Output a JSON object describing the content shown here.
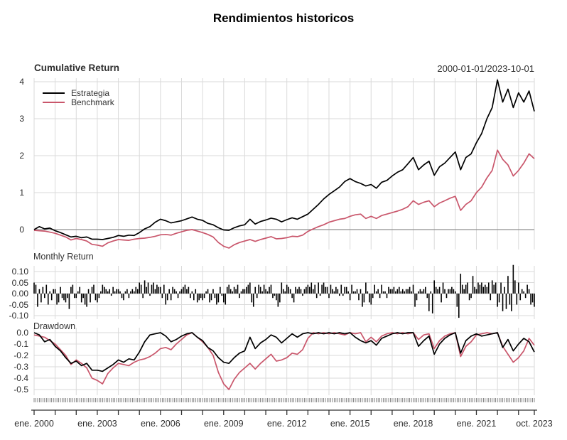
{
  "title": "Rendimientos historicos",
  "header": {
    "panel_title": "Cumulative Return",
    "date_range": "2000-01-01/2023-10-01"
  },
  "legend": [
    {
      "label": "Estrategia",
      "color": "#000000"
    },
    {
      "label": "Benchmark",
      "color": "#c9566b"
    }
  ],
  "panels": {
    "monthly": {
      "title": "Monthly Return"
    },
    "drawdown": {
      "title": "Drawdown"
    }
  },
  "colors": {
    "estrategia": "#000000",
    "benchmark": "#c9566b",
    "grid": "#dadada",
    "zero_line": "#8f8f8f",
    "axis": "#333333",
    "bar": "#000000"
  },
  "xaxis": {
    "start": 2000,
    "end": 2023.75,
    "minor_ticks_months": 286,
    "labels": [
      {
        "text": "ene. 2000",
        "pos": 2000
      },
      {
        "text": "ene. 2003",
        "pos": 2003
      },
      {
        "text": "ene. 2006",
        "pos": 2006
      },
      {
        "text": "ene. 2009",
        "pos": 2009
      },
      {
        "text": "ene. 2012",
        "pos": 2012
      },
      {
        "text": "ene. 2015",
        "pos": 2015
      },
      {
        "text": "ene. 2018",
        "pos": 2018
      },
      {
        "text": "ene. 2021",
        "pos": 2021
      },
      {
        "text": "oct. 2023",
        "pos": 2023.75
      }
    ]
  },
  "chart_data": [
    {
      "type": "line",
      "title": "Cumulative Return",
      "date_range": "2000-01-01/2023-10-01",
      "ylim": [
        -0.6,
        4.15
      ],
      "yticks": [
        {
          "v": 4,
          "label": "4"
        },
        {
          "v": 3,
          "label": "3"
        },
        {
          "v": 2,
          "label": "2"
        },
        {
          "v": 1,
          "label": "1"
        },
        {
          "v": 0,
          "label": "0"
        }
      ],
      "grid": "both",
      "legend_position": "top-left",
      "x_start": 2000,
      "x_step": 0.25,
      "series": [
        {
          "name": "Estrategia",
          "color": "#000000",
          "values": [
            0.0,
            0.08,
            0.02,
            0.04,
            -0.03,
            -0.08,
            -0.14,
            -0.2,
            -0.18,
            -0.22,
            -0.2,
            -0.26,
            -0.26,
            -0.27,
            -0.24,
            -0.21,
            -0.16,
            -0.18,
            -0.15,
            -0.16,
            -0.08,
            0.02,
            0.08,
            0.2,
            0.28,
            0.24,
            0.18,
            0.21,
            0.24,
            0.29,
            0.34,
            0.28,
            0.25,
            0.17,
            0.13,
            0.05,
            -0.01,
            -0.02,
            0.05,
            0.1,
            0.13,
            0.28,
            0.15,
            0.22,
            0.26,
            0.31,
            0.28,
            0.21,
            0.27,
            0.32,
            0.28,
            0.35,
            0.42,
            0.55,
            0.68,
            0.83,
            0.95,
            1.05,
            1.15,
            1.3,
            1.38,
            1.3,
            1.25,
            1.18,
            1.22,
            1.12,
            1.28,
            1.33,
            1.45,
            1.55,
            1.62,
            1.78,
            1.95,
            1.62,
            1.75,
            1.85,
            1.47,
            1.7,
            1.8,
            1.95,
            2.1,
            1.62,
            1.95,
            2.05,
            2.35,
            2.6,
            3.0,
            3.3,
            4.05,
            3.45,
            3.8,
            3.3,
            3.7,
            3.45,
            3.75,
            3.2
          ]
        },
        {
          "name": "Benchmark",
          "color": "#c9566b",
          "values": [
            -0.02,
            -0.03,
            -0.04,
            -0.07,
            -0.1,
            -0.15,
            -0.2,
            -0.28,
            -0.24,
            -0.27,
            -0.31,
            -0.4,
            -0.42,
            -0.45,
            -0.36,
            -0.31,
            -0.27,
            -0.28,
            -0.29,
            -0.26,
            -0.24,
            -0.23,
            -0.21,
            -0.18,
            -0.14,
            -0.13,
            -0.15,
            -0.1,
            -0.06,
            -0.02,
            0.0,
            -0.04,
            -0.08,
            -0.13,
            -0.2,
            -0.35,
            -0.45,
            -0.5,
            -0.41,
            -0.35,
            -0.31,
            -0.27,
            -0.32,
            -0.27,
            -0.23,
            -0.19,
            -0.25,
            -0.24,
            -0.22,
            -0.18,
            -0.19,
            -0.15,
            -0.05,
            0.02,
            0.08,
            0.13,
            0.2,
            0.24,
            0.28,
            0.3,
            0.36,
            0.4,
            0.42,
            0.3,
            0.36,
            0.3,
            0.38,
            0.42,
            0.46,
            0.5,
            0.55,
            0.62,
            0.78,
            0.68,
            0.74,
            0.78,
            0.62,
            0.72,
            0.78,
            0.85,
            0.9,
            0.52,
            0.68,
            0.78,
            1.0,
            1.15,
            1.4,
            1.6,
            2.15,
            1.9,
            1.75,
            1.45,
            1.6,
            1.8,
            2.05,
            1.92
          ]
        }
      ]
    },
    {
      "type": "bar",
      "title": "Monthly Return",
      "series_name": "Estrategia",
      "ylim": [
        -0.125,
        0.14
      ],
      "yticks": [
        {
          "v": 0.1,
          "label": "0.10"
        },
        {
          "v": 0.05,
          "label": "0.05"
        },
        {
          "v": 0.0,
          "label": "0.00"
        },
        {
          "v": -0.05,
          "label": "-0.05"
        },
        {
          "v": -0.1,
          "label": "-0.10"
        }
      ],
      "x_start": 2000,
      "x_step": 0.0833333,
      "values": [
        0.05,
        0.04,
        -0.06,
        0.02,
        -0.04,
        0.03,
        -0.02,
        0.04,
        -0.05,
        0.01,
        -0.03,
        0.02,
        0.02,
        -0.05,
        -0.04,
        0.03,
        -0.02,
        -0.03,
        -0.04,
        -0.02,
        -0.07,
        0.03,
        0.04,
        -0.02,
        -0.02,
        0.01,
        0.03,
        -0.04,
        -0.02,
        -0.05,
        -0.06,
        0.02,
        -0.04,
        0.03,
        0.04,
        -0.03,
        -0.04,
        -0.02,
        0.01,
        0.04,
        0.03,
        0.02,
        0.01,
        0.02,
        -0.01,
        0.03,
        0.01,
        0.02,
        0.02,
        0.01,
        -0.02,
        -0.03,
        0.01,
        0.02,
        -0.02,
        0.01,
        0.02,
        0.01,
        0.03,
        0.02,
        0.05,
        0.04,
        -0.02,
        0.06,
        0.03,
        0.05,
        -0.01,
        0.04,
        0.05,
        0.02,
        0.04,
        0.03,
        0.03,
        -0.02,
        0.04,
        -0.05,
        -0.03,
        0.02,
        -0.03,
        0.03,
        0.02,
        0.01,
        -0.02,
        0.01,
        0.02,
        0.03,
        0.04,
        0.02,
        0.03,
        -0.02,
        0.01,
        -0.03,
        0.02,
        -0.04,
        -0.03,
        -0.02,
        -0.03,
        -0.02,
        0.01,
        0.02,
        -0.04,
        -0.03,
        0.02,
        -0.02,
        -0.05,
        -0.04,
        0.03,
        -0.01,
        -0.04,
        -0.05,
        0.03,
        0.04,
        0.02,
        0.01,
        0.03,
        0.02,
        0.04,
        -0.02,
        0.01,
        0.02,
        0.02,
        0.03,
        0.04,
        0.05,
        -0.04,
        -0.06,
        0.03,
        -0.02,
        0.04,
        0.03,
        0.01,
        0.04,
        0.02,
        0.01,
        0.03,
        0.04,
        -0.02,
        -0.01,
        -0.03,
        -0.06,
        -0.04,
        0.05,
        0.02,
        0.01,
        0.04,
        0.03,
        0.02,
        -0.02,
        -0.04,
        0.03,
        0.02,
        0.03,
        0.02,
        -0.01,
        0.02,
        0.03,
        0.04,
        0.03,
        0.05,
        0.02,
        0.04,
        -0.02,
        0.05,
        -0.01,
        0.04,
        0.05,
        0.03,
        0.03,
        -0.02,
        0.04,
        0.02,
        0.01,
        0.03,
        0.02,
        -0.01,
        0.04,
        -0.01,
        0.03,
        0.03,
        0.01,
        -0.03,
        0.04,
        0.01,
        0.01,
        0.02,
        -0.03,
        0.02,
        -0.06,
        -0.04,
        0.05,
        0.01,
        -0.04,
        -0.05,
        -0.02,
        0.04,
        0.01,
        0.02,
        -0.02,
        0.04,
        0.01,
        0.01,
        -0.02,
        0.03,
        0.02,
        0.02,
        0.03,
        0.01,
        0.02,
        0.03,
        0.01,
        0.02,
        0.01,
        0.02,
        0.02,
        0.03,
        0.01,
        0.04,
        -0.06,
        -0.03,
        0.01,
        0.02,
        0.01,
        0.02,
        0.03,
        -0.02,
        -0.08,
        0.01,
        -0.09,
        0.06,
        0.03,
        0.02,
        0.03,
        -0.04,
        0.05,
        0.02,
        -0.02,
        0.02,
        0.02,
        0.03,
        0.02,
        0.01,
        -0.06,
        -0.11,
        0.09,
        0.04,
        0.02,
        0.04,
        0.05,
        -0.03,
        -0.02,
        0.08,
        0.03,
        0.02,
        0.05,
        0.04,
        0.05,
        0.03,
        0.04,
        0.03,
        0.05,
        -0.03,
        0.06,
        0.04,
        0.05,
        -0.06,
        -0.04,
        0.05,
        -0.08,
        0.03,
        -0.07,
        0.08,
        -0.05,
        -0.08,
        0.13,
        0.06,
        -0.05,
        0.05,
        -0.03,
        0.02,
        0.01,
        -0.02,
        0.04,
        0.02,
        -0.05,
        -0.04,
        -0.06
      ]
    },
    {
      "type": "line",
      "title": "Drawdown",
      "ylim": [
        -0.56,
        0.02
      ],
      "yticks": [
        {
          "v": 0.0,
          "label": "0.0"
        },
        {
          "v": -0.1,
          "label": "-0.1"
        },
        {
          "v": -0.2,
          "label": "-0.2"
        },
        {
          "v": -0.3,
          "label": "-0.3"
        },
        {
          "v": -0.4,
          "label": "-0.4"
        },
        {
          "v": -0.5,
          "label": "-0.5"
        }
      ],
      "x_start": 2000,
      "x_step": 0.25,
      "series": [
        {
          "name": "Estrategia",
          "color": "#000000",
          "values": [
            0.0,
            -0.02,
            -0.08,
            -0.06,
            -0.12,
            -0.16,
            -0.22,
            -0.27,
            -0.25,
            -0.29,
            -0.27,
            -0.33,
            -0.33,
            -0.34,
            -0.31,
            -0.28,
            -0.24,
            -0.26,
            -0.23,
            -0.24,
            -0.17,
            -0.08,
            -0.02,
            -0.01,
            0.0,
            -0.03,
            -0.08,
            -0.06,
            -0.03,
            -0.01,
            0.0,
            -0.04,
            -0.07,
            -0.13,
            -0.16,
            -0.22,
            -0.26,
            -0.27,
            -0.22,
            -0.18,
            -0.16,
            -0.04,
            -0.14,
            -0.09,
            -0.06,
            -0.02,
            -0.04,
            -0.09,
            -0.05,
            -0.01,
            -0.04,
            -0.01,
            0.0,
            -0.01,
            0.0,
            -0.01,
            0.0,
            -0.01,
            0.0,
            -0.01,
            0.0,
            -0.04,
            -0.07,
            -0.09,
            -0.07,
            -0.11,
            -0.05,
            -0.03,
            -0.01,
            0.0,
            -0.01,
            0.0,
            0.0,
            -0.12,
            -0.07,
            -0.03,
            -0.19,
            -0.1,
            -0.05,
            -0.02,
            0.0,
            -0.18,
            -0.07,
            -0.03,
            -0.01,
            -0.03,
            -0.02,
            -0.01,
            0.0,
            -0.13,
            -0.06,
            -0.16,
            -0.1,
            -0.05,
            -0.08,
            -0.17
          ]
        },
        {
          "name": "Benchmark",
          "color": "#c9566b",
          "values": [
            -0.02,
            -0.03,
            -0.04,
            -0.07,
            -0.1,
            -0.15,
            -0.2,
            -0.28,
            -0.24,
            -0.27,
            -0.31,
            -0.4,
            -0.42,
            -0.45,
            -0.36,
            -0.31,
            -0.27,
            -0.28,
            -0.29,
            -0.26,
            -0.24,
            -0.23,
            -0.21,
            -0.18,
            -0.14,
            -0.13,
            -0.15,
            -0.1,
            -0.06,
            -0.02,
            0.0,
            -0.04,
            -0.08,
            -0.13,
            -0.2,
            -0.35,
            -0.45,
            -0.5,
            -0.41,
            -0.35,
            -0.31,
            -0.27,
            -0.32,
            -0.27,
            -0.23,
            -0.19,
            -0.25,
            -0.24,
            -0.22,
            -0.18,
            -0.19,
            -0.15,
            -0.05,
            0.0,
            -0.01,
            0.0,
            -0.01,
            0.0,
            -0.01,
            -0.02,
            0.0,
            -0.01,
            0.0,
            -0.08,
            -0.04,
            -0.08,
            -0.03,
            -0.01,
            0.0,
            -0.01,
            0.0,
            -0.01,
            0.0,
            -0.06,
            -0.02,
            -0.01,
            -0.14,
            -0.07,
            -0.03,
            -0.01,
            0.0,
            -0.21,
            -0.12,
            -0.08,
            -0.02,
            -0.01,
            0.0,
            -0.01,
            0.0,
            -0.12,
            -0.19,
            -0.26,
            -0.22,
            -0.16,
            -0.05,
            -0.11
          ]
        }
      ]
    }
  ]
}
